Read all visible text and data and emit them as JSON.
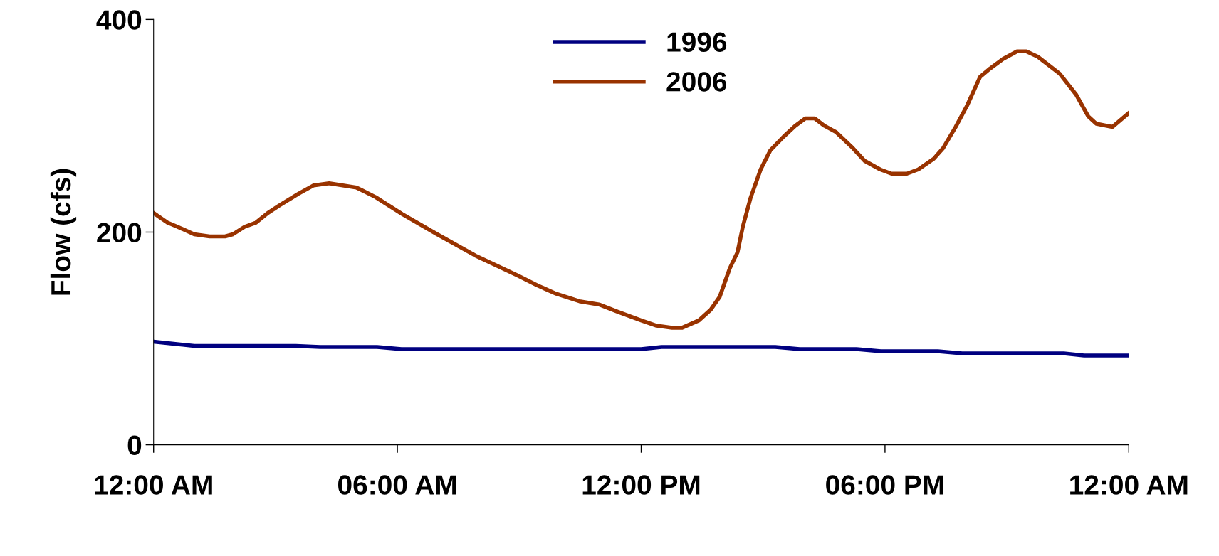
{
  "chart_data": {
    "type": "line",
    "ylabel": "Flow (cfs)",
    "xlim": [
      0,
      24
    ],
    "ylim": [
      0,
      400
    ],
    "xticks": [
      {
        "value": 0,
        "label": "12:00 AM"
      },
      {
        "value": 6,
        "label": "06:00 AM"
      },
      {
        "value": 12,
        "label": "12:00 PM"
      },
      {
        "value": 18,
        "label": "06:00 PM"
      },
      {
        "value": 24,
        "label": "12:00 AM"
      }
    ],
    "yticks": [
      0,
      200,
      400
    ],
    "grid": false,
    "legend": "top",
    "marker": "none",
    "line_style": "solid",
    "series": [
      {
        "name": "1996",
        "color": "#000080",
        "x": [
          0,
          1,
          3.5,
          4.1,
          5.5,
          6.1,
          12,
          12.5,
          15.3,
          15.9,
          17.3,
          17.9,
          19.3,
          19.9,
          22.4,
          22.9,
          24
        ],
        "values": [
          97,
          93,
          93,
          92,
          92,
          90,
          90,
          92,
          92,
          90,
          90,
          88,
          88,
          86,
          86,
          84,
          84
        ]
      },
      {
        "name": "2006",
        "color": "#993300",
        "x": [
          0,
          0.34,
          0.59,
          1.0,
          1.38,
          1.76,
          1.95,
          2.24,
          2.52,
          2.81,
          3.09,
          3.56,
          3.94,
          4.32,
          4.99,
          5.46,
          6.12,
          6.98,
          7.92,
          8.97,
          9.44,
          9.91,
          10.48,
          10.96,
          11.43,
          12.0,
          12.38,
          12.76,
          13.0,
          13.42,
          13.71,
          13.93,
          14.18,
          14.37,
          14.5,
          14.69,
          14.94,
          15.18,
          15.51,
          15.79,
          16.04,
          16.27,
          16.51,
          16.8,
          17.21,
          17.5,
          17.88,
          18.16,
          18.54,
          18.82,
          19.2,
          19.43,
          19.74,
          20.02,
          20.34,
          20.59,
          20.91,
          21.25,
          21.48,
          21.76,
          22.3,
          22.71,
          23.0,
          23.2,
          23.6,
          24
        ],
        "values": [
          218,
          209,
          205,
          198,
          196,
          196,
          198,
          205,
          209,
          218,
          225,
          236,
          244,
          246,
          242,
          233,
          217,
          198,
          178,
          159,
          150,
          142,
          135,
          132,
          125,
          117,
          112,
          110,
          110,
          117,
          127,
          139,
          166,
          181,
          205,
          232,
          259,
          277,
          290,
          300,
          307,
          307,
          300,
          294,
          279,
          267,
          259,
          255,
          255,
          259,
          269,
          279,
          299,
          319,
          346,
          354,
          363,
          370,
          370,
          365,
          349,
          329,
          309,
          302,
          299,
          312
        ]
      }
    ]
  }
}
